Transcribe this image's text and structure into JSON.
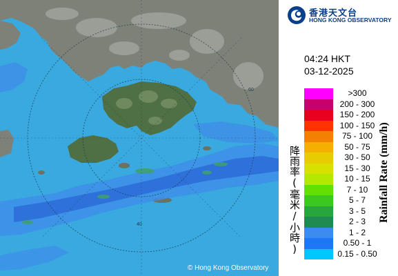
{
  "map": {
    "copyright": "© Hong Kong Observatory",
    "range_ring_labels": [
      "40",
      "60"
    ],
    "colors": {
      "sea": "#39a9e0",
      "land": "#7d8178",
      "rain_light": "#3e8fe8",
      "rain_mid": "#2e6ed8",
      "rain_core": "#3fa06a"
    }
  },
  "header": {
    "org_name_zh": "香港天文台",
    "org_name_en": "HONG KONG OBSERVATORY",
    "logo_icon": "hko-logo-icon"
  },
  "timestamp": {
    "time": "04:24 HKT",
    "date": "03-12-2025"
  },
  "legend": {
    "title_zh": "降雨率(毫米/小時)",
    "title_en": "Rainfall Rate (mm/h)",
    "items": [
      {
        "label": ">300",
        "color": "#ff00ff"
      },
      {
        "label": "200 - 300",
        "color": "#c8006e"
      },
      {
        "label": "150 - 200",
        "color": "#e8001e"
      },
      {
        "label": "100 - 150",
        "color": "#ff3200"
      },
      {
        "label": "75 - 100",
        "color": "#f48000"
      },
      {
        "label": "50 - 75",
        "color": "#f4b000"
      },
      {
        "label": "30 - 50",
        "color": "#e6cc00"
      },
      {
        "label": "15 - 30",
        "color": "#d8e000"
      },
      {
        "label": "10 - 15",
        "color": "#b4e800"
      },
      {
        "label": "7 - 10",
        "color": "#64e000"
      },
      {
        "label": "5 - 7",
        "color": "#3cc81e"
      },
      {
        "label": "3 - 5",
        "color": "#28a53c"
      },
      {
        "label": "2 - 3",
        "color": "#1e8c50"
      },
      {
        "label": "1 - 2",
        "color": "#3c8cf0"
      },
      {
        "label": "0.50 - 1",
        "color": "#1e78f5"
      },
      {
        "label": "0.15 - 0.50",
        "color": "#00c8ff"
      }
    ]
  }
}
